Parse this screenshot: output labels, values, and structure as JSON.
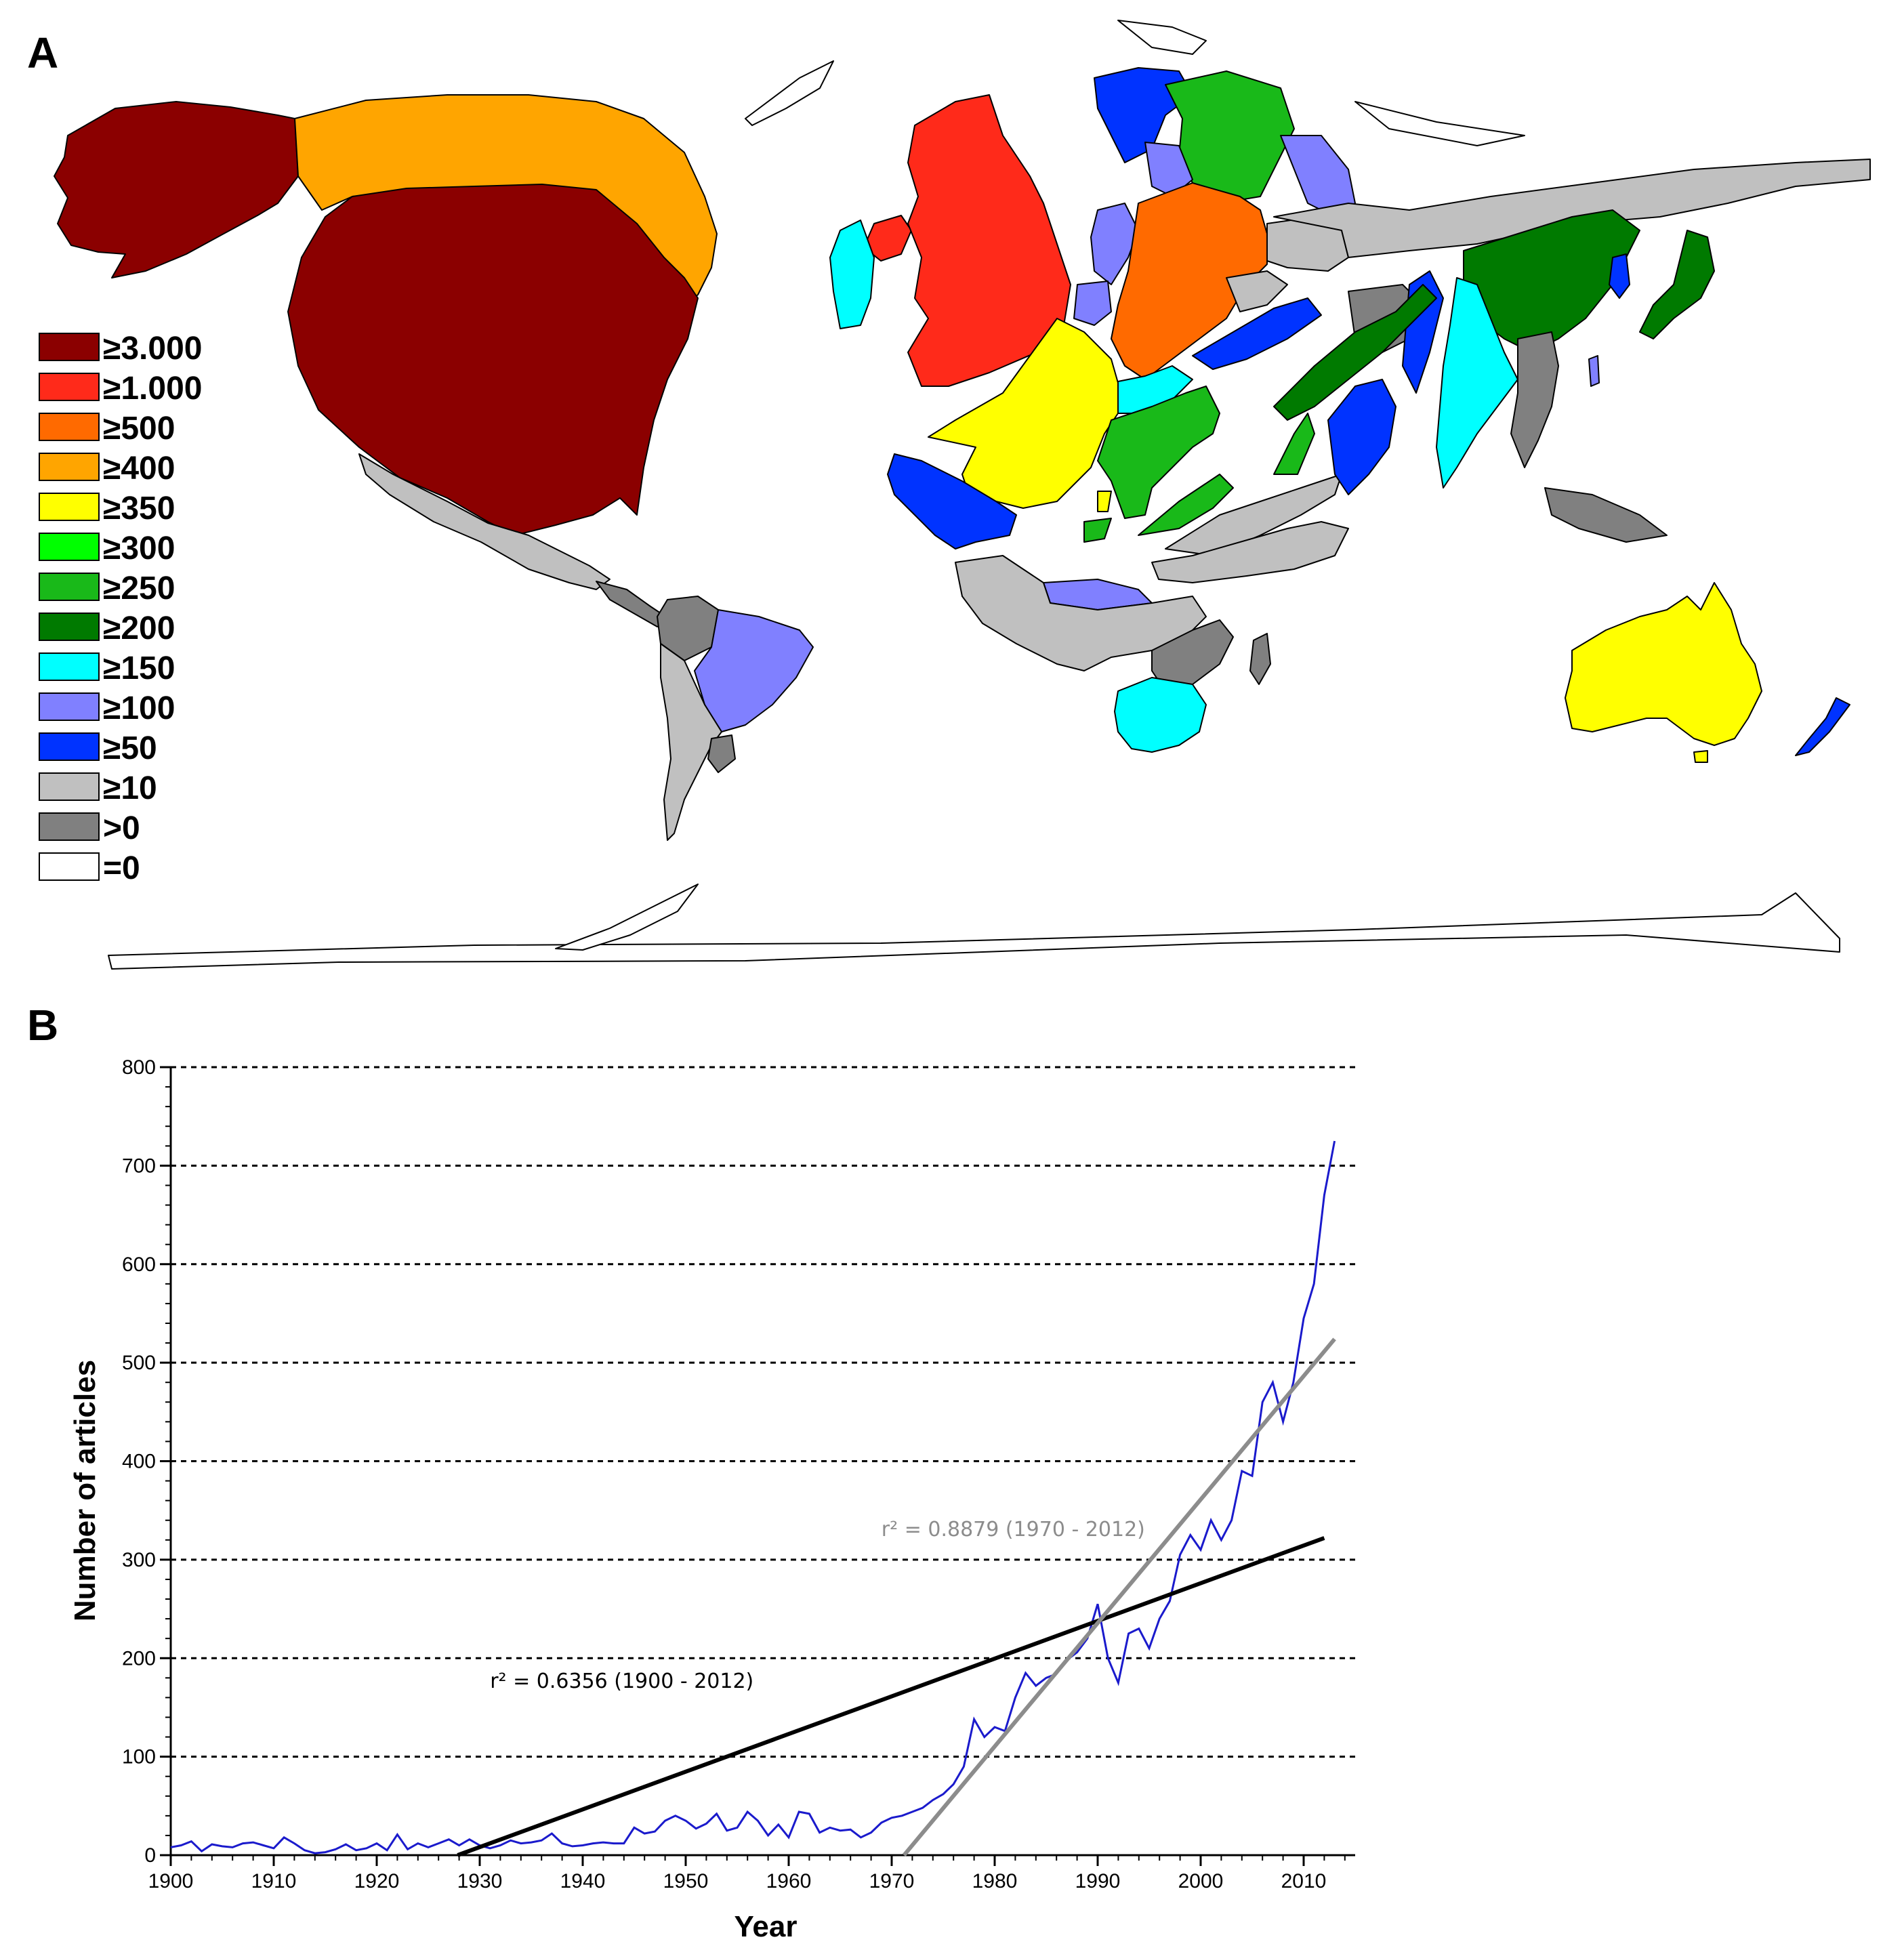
{
  "panel_a": {
    "label": "A",
    "legend": [
      {
        "label": "≥3.000",
        "color": "#8b0000"
      },
      {
        "label": "≥1.000",
        "color": "#ff2a1a"
      },
      {
        "label": "≥500",
        "color": "#ff6a00"
      },
      {
        "label": "≥400",
        "color": "#ffa500"
      },
      {
        "label": "≥350",
        "color": "#ffff00"
      },
      {
        "label": "≥300",
        "color": "#00ff00"
      },
      {
        "label": "≥250",
        "color": "#19b919"
      },
      {
        "label": "≥200",
        "color": "#007a00"
      },
      {
        "label": "≥150",
        "color": "#00ffff"
      },
      {
        "label": "≥100",
        "color": "#8080ff"
      },
      {
        "label": "≥50",
        "color": "#0033ff"
      },
      {
        "label": "≥10",
        "color": "#c0c0c0"
      },
      {
        "label": ">0",
        "color": "#808080"
      },
      {
        "label": "=0",
        "color": "#ffffff"
      }
    ]
  },
  "panel_b": {
    "label": "B",
    "chart_data": {
      "type": "line",
      "xlabel": "Year",
      "ylabel": "Number of articles",
      "xlim": [
        1900,
        2015
      ],
      "ylim": [
        0,
        800
      ],
      "xticks": [
        1900,
        1910,
        1920,
        1930,
        1940,
        1950,
        1960,
        1970,
        1980,
        1990,
        2000,
        2010
      ],
      "yticks": [
        0,
        100,
        200,
        300,
        400,
        500,
        600,
        700,
        800
      ],
      "grid": "horizontal dashed",
      "series": [
        {
          "color": "#1a1acc",
          "x": [
            1900,
            1901,
            1902,
            1903,
            1904,
            1905,
            1906,
            1907,
            1908,
            1909,
            1910,
            1911,
            1912,
            1913,
            1914,
            1915,
            1916,
            1917,
            1918,
            1919,
            1920,
            1921,
            1922,
            1923,
            1924,
            1925,
            1926,
            1927,
            1928,
            1929,
            1930,
            1931,
            1932,
            1933,
            1934,
            1935,
            1936,
            1937,
            1938,
            1939,
            1940,
            1941,
            1942,
            1943,
            1944,
            1945,
            1946,
            1947,
            1948,
            1949,
            1950,
            1951,
            1952,
            1953,
            1954,
            1955,
            1956,
            1957,
            1958,
            1959,
            1960,
            1961,
            1962,
            1963,
            1964,
            1965,
            1966,
            1967,
            1968,
            1969,
            1970,
            1971,
            1972,
            1973,
            1974,
            1975,
            1976,
            1977,
            1978,
            1979,
            1980,
            1981,
            1982,
            1983,
            1984,
            1985,
            1986,
            1987,
            1988,
            1989,
            1990,
            1991,
            1992,
            1993,
            1994,
            1995,
            1996,
            1997,
            1998,
            1999,
            2000,
            2001,
            2002,
            2003,
            2004,
            2005,
            2006,
            2007,
            2008,
            2009,
            2010,
            2011,
            2012,
            2013
          ],
          "y": [
            8,
            10,
            14,
            4,
            11,
            9,
            8,
            12,
            13,
            10,
            7,
            18,
            12,
            5,
            2,
            3,
            6,
            11,
            5,
            7,
            12,
            5,
            21,
            6,
            12,
            8,
            12,
            16,
            10,
            16,
            10,
            7,
            10,
            15,
            12,
            13,
            15,
            22,
            12,
            9,
            10,
            12,
            13,
            12,
            12,
            28,
            22,
            24,
            35,
            40,
            35,
            27,
            32,
            42,
            25,
            28,
            44,
            35,
            20,
            31,
            18,
            44,
            42,
            23,
            28,
            25,
            26,
            18,
            23,
            33,
            38,
            40,
            44,
            48,
            56,
            62,
            72,
            90,
            138,
            120,
            130,
            126,
            160,
            185,
            172,
            180,
            184,
            198,
            206,
            220,
            255,
            200,
            175,
            225,
            230,
            210,
            240,
            258,
            305,
            325,
            310,
            340,
            320,
            340,
            390,
            385,
            460,
            480,
            440,
            480,
            545,
            580,
            670,
            725
          ]
        },
        {
          "color": "#000000",
          "label": "r² =  0.6356  (1900 - 2012)",
          "fit_x": [
            1900,
            2012
          ],
          "fit_y": [
            -106.6,
            322
          ]
        },
        {
          "color": "#8c8c8c",
          "label": "r² =  0.8879  (1970 - 2012)",
          "fit_x": [
            1970,
            2013
          ],
          "fit_y": [
            -15,
            524
          ]
        }
      ]
    }
  }
}
